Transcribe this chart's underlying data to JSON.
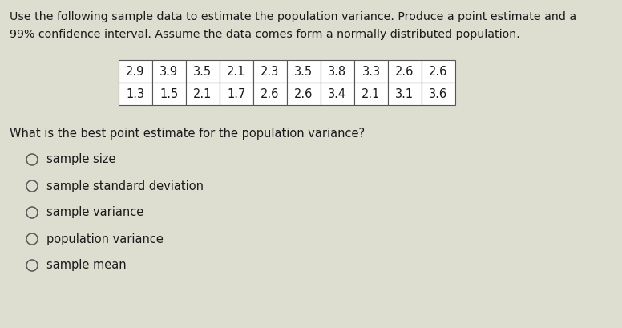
{
  "intro_text_line1": "Use the following sample data to estimate the population variance. Produce a point estimate and a",
  "intro_text_line2": "99% confidence interval. Assume the data comes form a normally distributed population.",
  "table_row1": [
    "2.9",
    "3.9",
    "3.5",
    "2.1",
    "2.3",
    "3.5",
    "3.8",
    "3.3",
    "2.6",
    "2.6"
  ],
  "table_row2": [
    "1.3",
    "1.5",
    "2.1",
    "1.7",
    "2.6",
    "2.6",
    "3.4",
    "2.1",
    "3.1",
    "3.6"
  ],
  "question": "What is the best point estimate for the population variance?",
  "options": [
    "sample size",
    "sample standard deviation",
    "sample variance",
    "population variance",
    "sample mean"
  ],
  "bg_color": "#ddddd0",
  "text_color": "#1a1a1a",
  "table_bg": "#ffffff",
  "table_border": "#555555",
  "option_circle_color": "#555555",
  "fig_width": 7.76,
  "fig_height": 4.09,
  "dpi": 100
}
